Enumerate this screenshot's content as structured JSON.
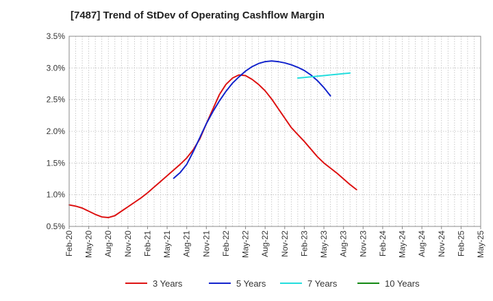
{
  "chart_data": {
    "type": "line",
    "title": "[7487]  Trend of StDev of Operating Cashflow Margin",
    "xlabel": "",
    "ylabel": "",
    "ylim": [
      0.5,
      3.5
    ],
    "y_ticks": [
      "0.5%",
      "1.0%",
      "1.5%",
      "2.0%",
      "2.5%",
      "3.0%",
      "3.5%"
    ],
    "y_tick_values": [
      0.5,
      1.0,
      1.5,
      2.0,
      2.5,
      3.0,
      3.5
    ],
    "x_tick_labels": [
      "Feb-20",
      "May-20",
      "Aug-20",
      "Nov-20",
      "Feb-21",
      "May-21",
      "Aug-21",
      "Nov-21",
      "Feb-22",
      "May-22",
      "Aug-22",
      "Nov-22",
      "Feb-23",
      "May-23",
      "Aug-23",
      "Nov-23",
      "Feb-24",
      "May-24",
      "Aug-24",
      "Nov-24",
      "Feb-25",
      "May-25"
    ],
    "grid": true,
    "legend_position": "bottom",
    "series": [
      {
        "name": "3 Years",
        "color": "#dd1111",
        "start_index": 0,
        "values": [
          0.84,
          0.82,
          0.79,
          0.74,
          0.69,
          0.65,
          0.64,
          0.67,
          0.74,
          0.81,
          0.88,
          0.95,
          1.03,
          1.12,
          1.21,
          1.3,
          1.39,
          1.48,
          1.58,
          1.71,
          1.88,
          2.12,
          2.35,
          2.58,
          2.74,
          2.84,
          2.89,
          2.88,
          2.82,
          2.74,
          2.64,
          2.51,
          2.36,
          2.21,
          2.06,
          1.95,
          1.84,
          1.72,
          1.6,
          1.5,
          1.42,
          1.34,
          1.25,
          1.16,
          1.08
        ]
      },
      {
        "name": "5 Years",
        "color": "#1122cc",
        "start_index": 16,
        "values": [
          1.26,
          1.35,
          1.48,
          1.68,
          1.9,
          2.12,
          2.31,
          2.48,
          2.63,
          2.76,
          2.86,
          2.95,
          3.02,
          3.07,
          3.1,
          3.11,
          3.1,
          3.08,
          3.05,
          3.01,
          2.96,
          2.89,
          2.8,
          2.69,
          2.56
        ]
      },
      {
        "name": "7 Years",
        "color": "#22dddd",
        "start_index": 35,
        "values": [
          2.84,
          2.85,
          2.86,
          2.87,
          2.88,
          2.89,
          2.9,
          2.91,
          2.92
        ]
      },
      {
        "name": "10 Years",
        "color": "#118811",
        "start_index": 0,
        "values": []
      }
    ]
  }
}
